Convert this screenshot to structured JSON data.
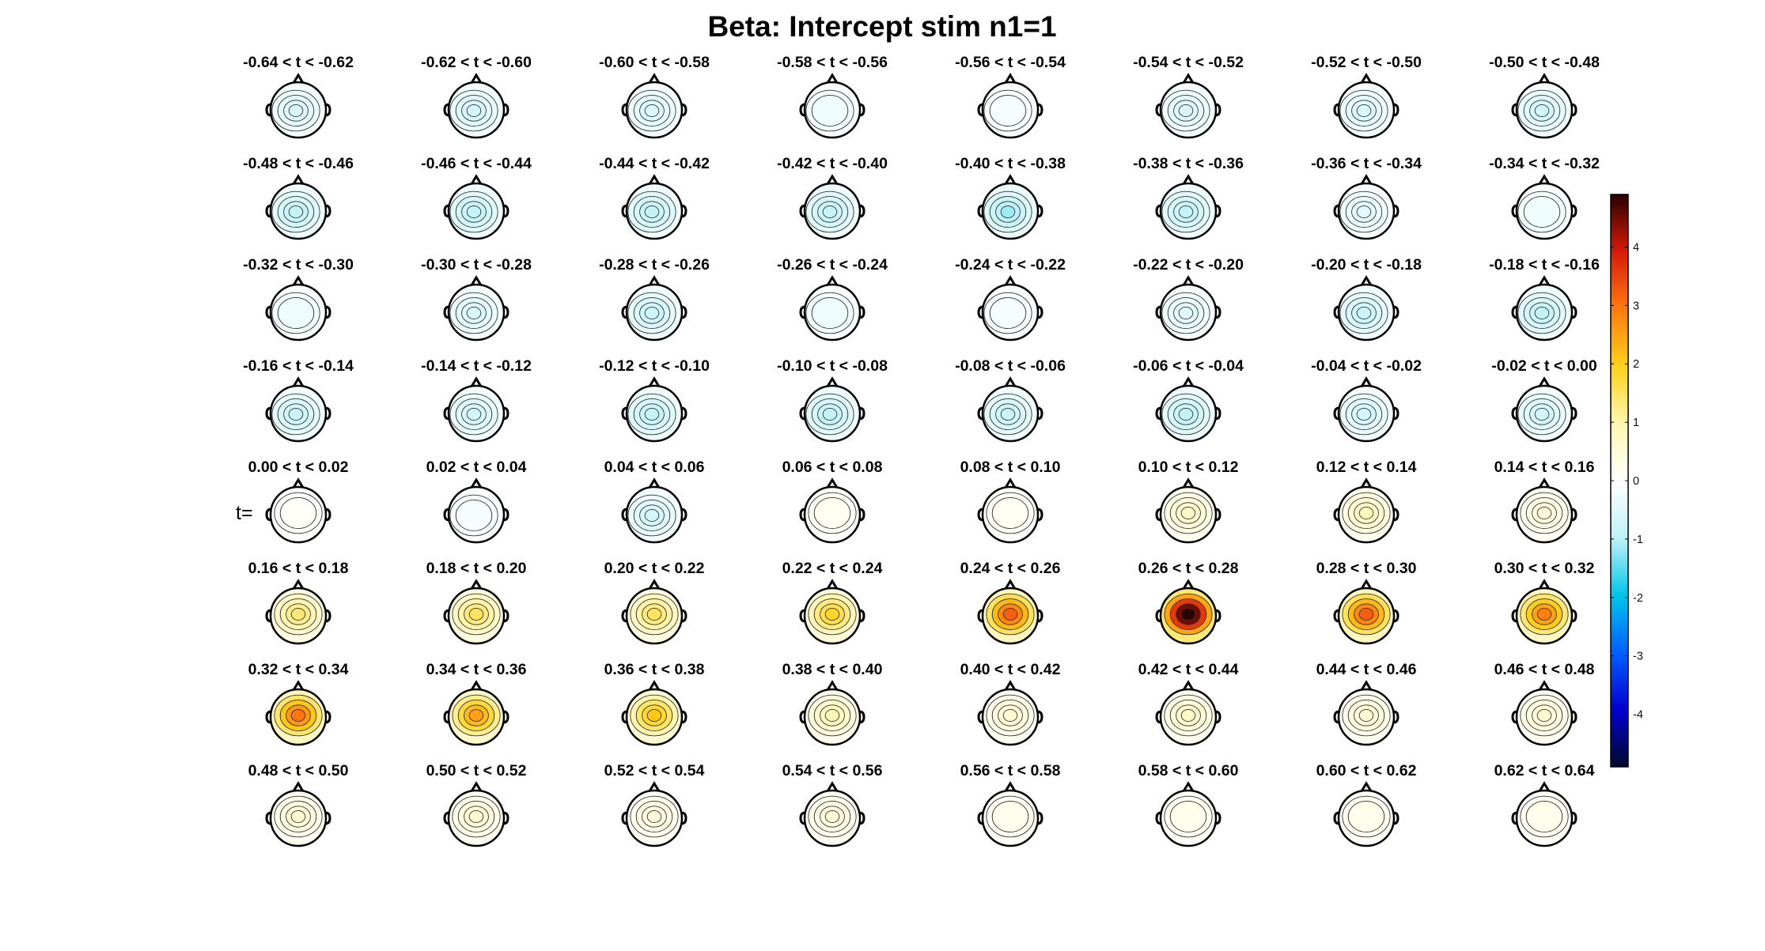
{
  "chart_data": {
    "type": "heatmap",
    "title": "Beta: Intercept stim  n1=1",
    "side_label": "t=",
    "grid": {
      "rows": 8,
      "cols": 8
    },
    "colorbar": {
      "range": [
        -4.9,
        4.9
      ],
      "ticks": [
        -4,
        -3,
        -2,
        -1,
        0,
        1,
        2,
        3,
        4
      ],
      "tick_labels": [
        "-4",
        "-3",
        "-2",
        "-1",
        "0",
        "1",
        "2",
        "3",
        "4"
      ],
      "colormap": [
        "#000a2a",
        "#0000d0",
        "#0060ff",
        "#00c6e8",
        "#bff2f8",
        "#ffffff",
        "#fff6b0",
        "#ffd21a",
        "#ff7a10",
        "#d81a08",
        "#2a0000"
      ]
    },
    "panels": [
      {
        "label": "-0.64 < t < -0.62",
        "value": -0.5
      },
      {
        "label": "-0.62 < t < -0.60",
        "value": -0.6
      },
      {
        "label": "-0.60 < t < -0.58",
        "value": -0.5
      },
      {
        "label": "-0.58 < t < -0.56",
        "value": -0.3
      },
      {
        "label": "-0.56 < t < -0.54",
        "value": -0.2
      },
      {
        "label": "-0.54 < t < -0.52",
        "value": -0.5
      },
      {
        "label": "-0.52 < t < -0.50",
        "value": -0.5
      },
      {
        "label": "-0.50 < t < -0.48",
        "value": -0.6
      },
      {
        "label": "-0.48 < t < -0.46",
        "value": -0.8
      },
      {
        "label": "-0.46 < t < -0.44",
        "value": -0.8
      },
      {
        "label": "-0.44 < t < -0.42",
        "value": -0.8
      },
      {
        "label": "-0.42 < t < -0.40",
        "value": -0.8
      },
      {
        "label": "-0.40 < t < -0.38",
        "value": -1.0
      },
      {
        "label": "-0.38 < t < -0.36",
        "value": -0.8
      },
      {
        "label": "-0.36 < t < -0.34",
        "value": -0.4
      },
      {
        "label": "-0.34 < t < -0.32",
        "value": -0.3
      },
      {
        "label": "-0.32 < t < -0.30",
        "value": -0.3
      },
      {
        "label": "-0.30 < t < -0.28",
        "value": -0.5
      },
      {
        "label": "-0.28 < t < -0.26",
        "value": -0.7
      },
      {
        "label": "-0.26 < t < -0.24",
        "value": -0.3
      },
      {
        "label": "-0.24 < t < -0.22",
        "value": -0.2
      },
      {
        "label": "-0.22 < t < -0.20",
        "value": -0.4
      },
      {
        "label": "-0.20 < t < -0.18",
        "value": -0.7
      },
      {
        "label": "-0.18 < t < -0.16",
        "value": -0.8
      },
      {
        "label": "-0.16 < t < -0.14",
        "value": -0.7
      },
      {
        "label": "-0.14 < t < -0.12",
        "value": -0.6
      },
      {
        "label": "-0.12 < t < -0.10",
        "value": -0.8
      },
      {
        "label": "-0.10 < t < -0.08",
        "value": -0.8
      },
      {
        "label": "-0.08 < t < -0.06",
        "value": -0.7
      },
      {
        "label": "-0.06 < t < -0.04",
        "value": -0.8
      },
      {
        "label": "-0.04 < t < -0.02",
        "value": -0.6
      },
      {
        "label": "-0.02 < t < 0.00",
        "value": -0.6
      },
      {
        "label": "0.00 < t < 0.02",
        "value": 0.1
      },
      {
        "label": "0.02 < t < 0.04",
        "value": -0.2
      },
      {
        "label": "0.04 < t < 0.06",
        "value": -0.6
      },
      {
        "label": "0.06 < t < 0.08",
        "value": 0.2
      },
      {
        "label": "0.08 < t < 0.10",
        "value": 0.2
      },
      {
        "label": "0.10 < t < 0.12",
        "value": 0.6
      },
      {
        "label": "0.12 < t < 0.14",
        "value": 0.7
      },
      {
        "label": "0.14 < t < 0.16",
        "value": 0.4
      },
      {
        "label": "0.16 < t < 0.18",
        "value": 1.2
      },
      {
        "label": "0.18 < t < 0.20",
        "value": 1.3
      },
      {
        "label": "0.20 < t < 0.22",
        "value": 1.3
      },
      {
        "label": "0.22 < t < 0.24",
        "value": 1.6
      },
      {
        "label": "0.24 < t < 0.26",
        "value": 2.8
      },
      {
        "label": "0.26 < t < 0.28",
        "value": 4.5
      },
      {
        "label": "0.28 < t < 0.30",
        "value": 2.8
      },
      {
        "label": "0.30 < t < 0.32",
        "value": 2.5
      },
      {
        "label": "0.32 < t < 0.34",
        "value": 2.6
      },
      {
        "label": "0.34 < t < 0.36",
        "value": 2.2
      },
      {
        "label": "0.36 < t < 0.38",
        "value": 1.8
      },
      {
        "label": "0.38 < t < 0.40",
        "value": 0.8
      },
      {
        "label": "0.40 < t < 0.42",
        "value": 0.5
      },
      {
        "label": "0.42 < t < 0.44",
        "value": 0.6
      },
      {
        "label": "0.44 < t < 0.46",
        "value": 0.5
      },
      {
        "label": "0.46 < t < 0.48",
        "value": 0.5
      },
      {
        "label": "0.48 < t < 0.50",
        "value": 0.5
      },
      {
        "label": "0.50 < t < 0.52",
        "value": 0.5
      },
      {
        "label": "0.52 < t < 0.54",
        "value": 0.4
      },
      {
        "label": "0.54 < t < 0.56",
        "value": 0.4
      },
      {
        "label": "0.56 < t < 0.58",
        "value": 0.3
      },
      {
        "label": "0.58 < t < 0.60",
        "value": 0.3
      },
      {
        "label": "0.60 < t < 0.62",
        "value": 0.3
      },
      {
        "label": "0.62 < t < 0.64",
        "value": 0.3
      }
    ]
  }
}
